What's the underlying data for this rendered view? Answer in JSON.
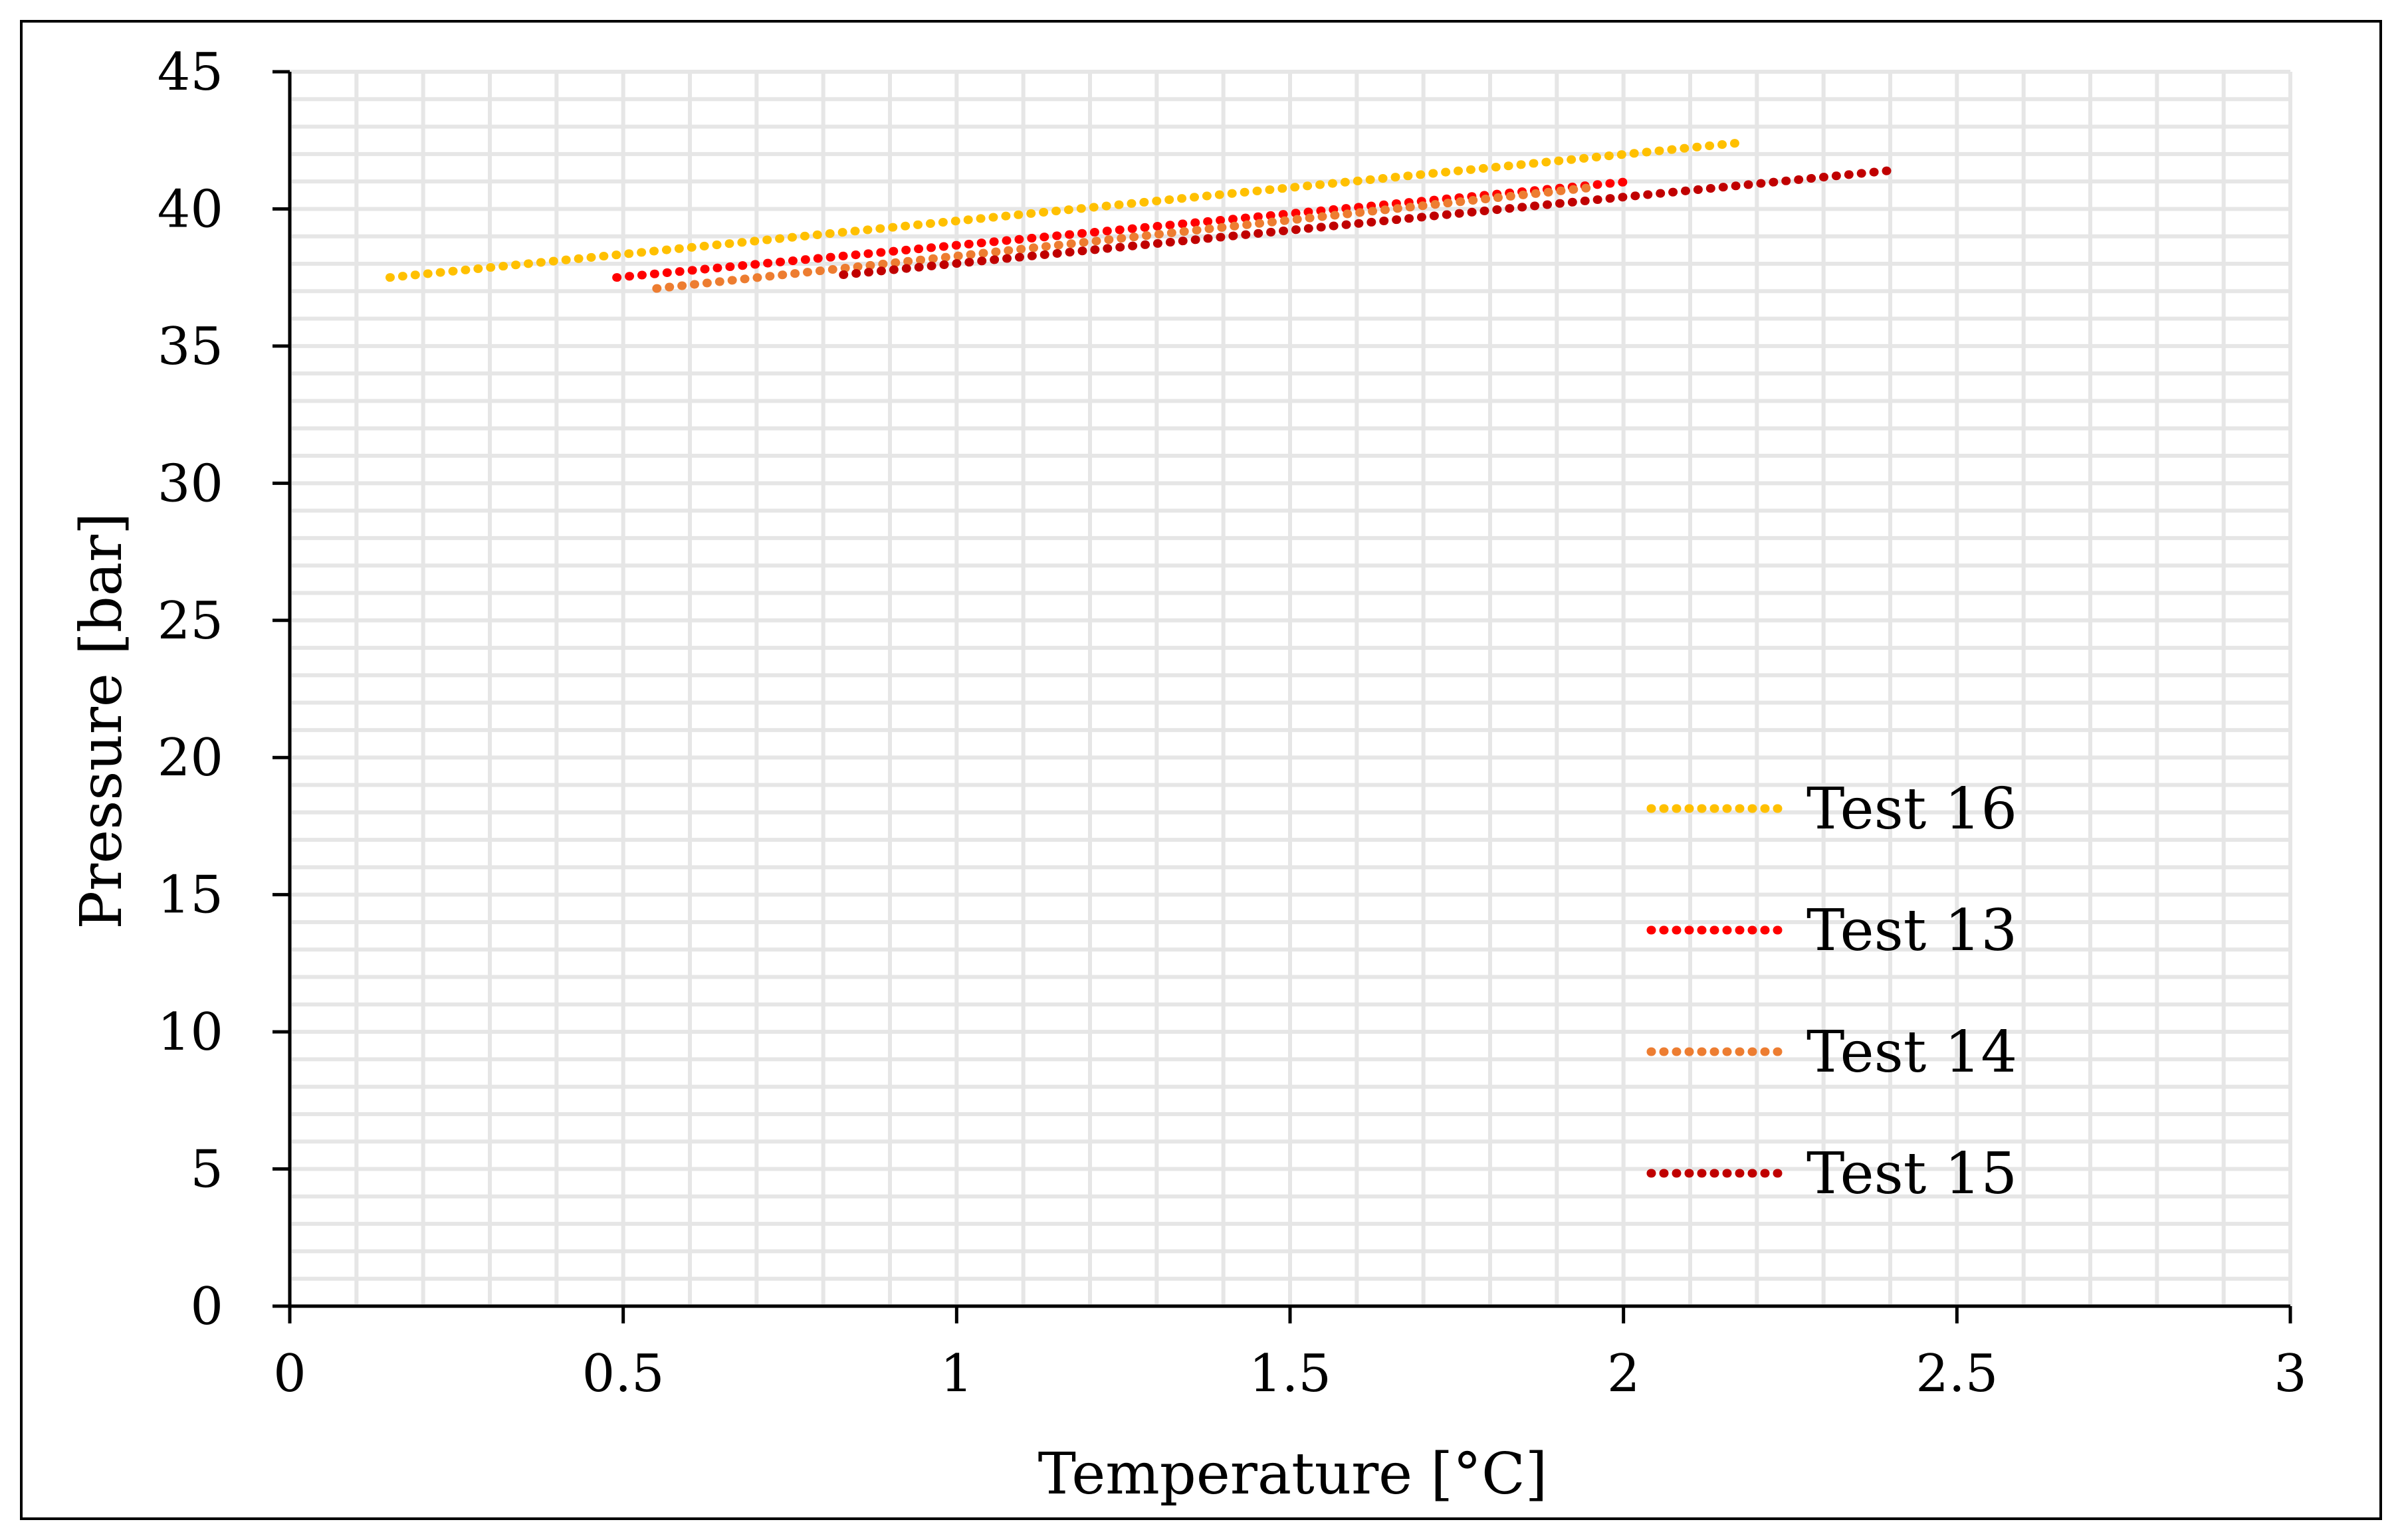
{
  "chart_data": {
    "type": "line",
    "title": "",
    "xlabel": "Temperature [°C]",
    "ylabel": "Pressure [bar]",
    "xlim": [
      0,
      3
    ],
    "ylim": [
      0,
      45
    ],
    "xticks": [
      0,
      0.5,
      1,
      1.5,
      2,
      2.5,
      3
    ],
    "xtick_labels": [
      "0",
      "0.5",
      "1",
      "1.5",
      "2",
      "2.5",
      "3"
    ],
    "yticks": [
      0,
      5,
      10,
      15,
      20,
      25,
      30,
      35,
      40,
      45
    ],
    "ytick_labels": [
      "0",
      "5",
      "10",
      "15",
      "20",
      "25",
      "30",
      "35",
      "40",
      "45"
    ],
    "grid": true,
    "legend_position": "bottom-right",
    "series": [
      {
        "name": "Test 16",
        "color": "#FFC000",
        "x": [
          0.15,
          2.17
        ],
        "y": [
          37.5,
          42.4
        ]
      },
      {
        "name": "Test 13",
        "color": "#FF0000",
        "x": [
          0.49,
          2.01
        ],
        "y": [
          37.5,
          41.0
        ]
      },
      {
        "name": "Test 14",
        "color": "#ED7D31",
        "x": [
          0.55,
          1.96
        ],
        "y": [
          37.1,
          40.8
        ]
      },
      {
        "name": "Test 15",
        "color": "#C00000",
        "x": [
          0.83,
          2.4
        ],
        "y": [
          37.6,
          41.4
        ]
      }
    ]
  }
}
